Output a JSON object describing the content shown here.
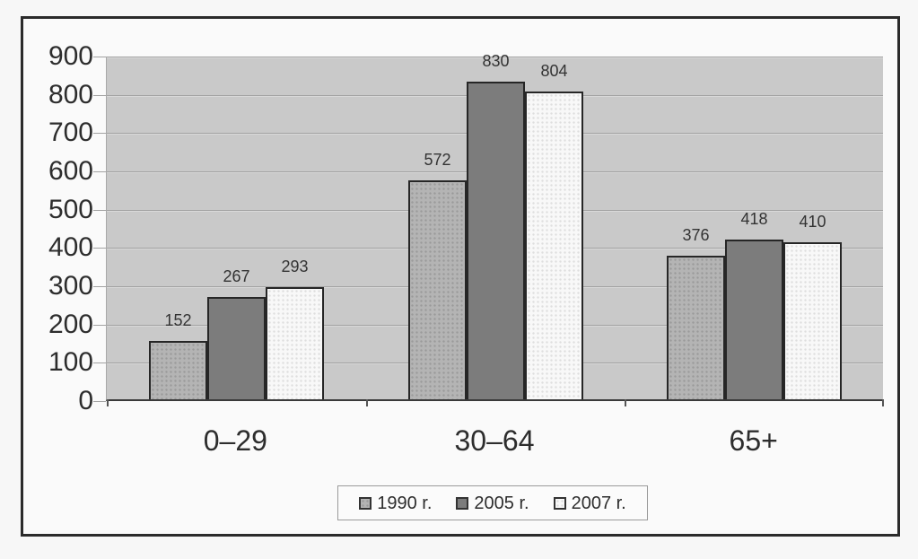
{
  "chart_data": {
    "type": "bar",
    "categories": [
      "0–29",
      "30–64",
      "65+"
    ],
    "series": [
      {
        "name": "1990 r.",
        "values": [
          152,
          572,
          376
        ]
      },
      {
        "name": "2005 r.",
        "values": [
          267,
          830,
          418
        ]
      },
      {
        "name": "2007 r.",
        "values": [
          293,
          804,
          410
        ]
      }
    ],
    "data_labels_shown": true,
    "ylim": [
      0,
      900
    ],
    "ytick_step": 100,
    "ytick_labels": [
      "0",
      "100",
      "200",
      "300",
      "400",
      "500",
      "600",
      "700",
      "800",
      "900"
    ],
    "grid": true,
    "legend_position": "bottom-center",
    "title": "",
    "xlabel": "",
    "ylabel": ""
  },
  "legend": {
    "items": [
      {
        "label": "1990 r.",
        "swatch": "gray-dotted"
      },
      {
        "label": "2005 r.",
        "swatch": "dark-gray"
      },
      {
        "label": "2007 r.",
        "swatch": "white-dotted"
      }
    ]
  },
  "colors": {
    "series_1990_fill": "#b4b4b4",
    "series_1990_dot": "#9a9a9a",
    "series_2005_fill": "#7c7c7c",
    "series_2007_fill": "#f8f8f8",
    "series_2007_dot": "#dedede",
    "bar_border": "#262626",
    "plot_background": "#c9c9c9",
    "gridline": "#a2a2a2",
    "axis_line": "#3a3a3a",
    "frame_border": "#2b2b2b",
    "frame_background": "#fafafa",
    "page_background": "#f7f7f7",
    "text": "#2d2d2d",
    "legend_border": "#9a9a9a"
  }
}
